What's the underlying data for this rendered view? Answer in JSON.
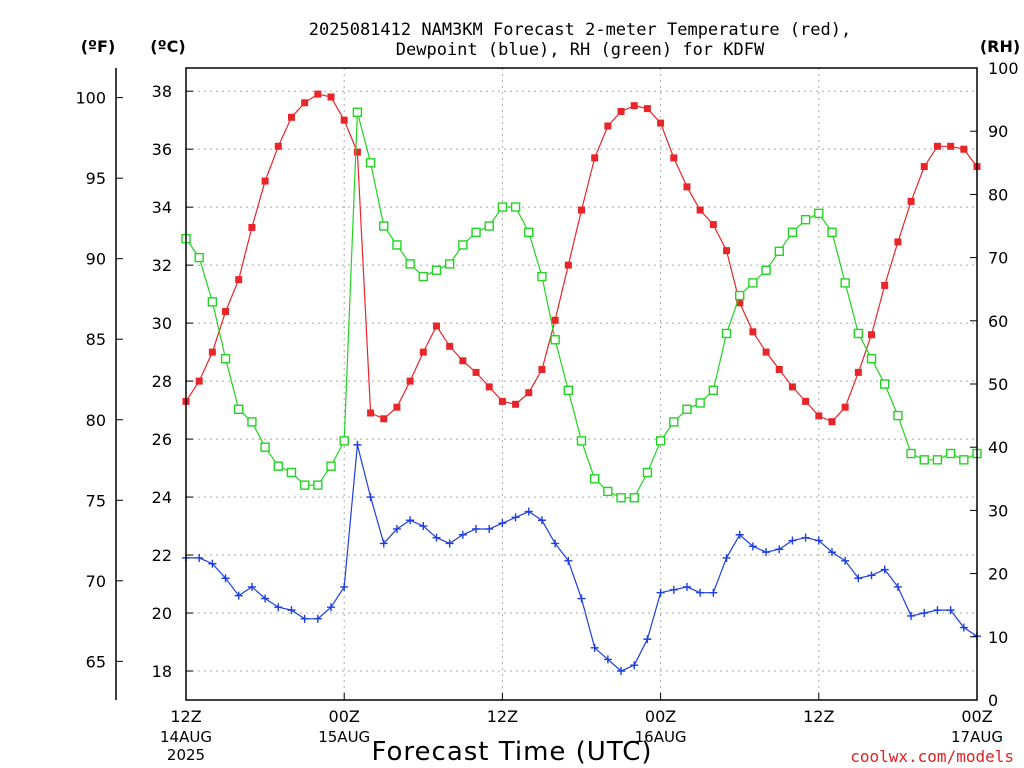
{
  "chart_data": {
    "type": "line",
    "title_line1": "2025081412 NAM3KM Forecast 2-meter Temperature (red),",
    "title_line2": "Dewpoint (blue), RH (green) for KDFW",
    "xlabel": "Forecast Time (UTC)",
    "credit": "coolwx.com/models",
    "left_outer_axis_label": "(ºF)",
    "left_inner_axis_label": "(ºC)",
    "right_axis_label": "(RH)",
    "celsius_ticks": [
      "18",
      "20",
      "22",
      "24",
      "26",
      "28",
      "30",
      "32",
      "34",
      "36",
      "38"
    ],
    "fahrenheit_ticks": [
      "65",
      "70",
      "75",
      "80",
      "85",
      "90",
      "95",
      "100"
    ],
    "rh_ticks": [
      "0",
      "10",
      "20",
      "30",
      "40",
      "50",
      "60",
      "70",
      "80",
      "90",
      "100"
    ],
    "ylim_celsius": [
      17,
      38.8
    ],
    "ylim_rh": [
      0,
      100
    ],
    "x_ticks": [
      {
        "hour": 0,
        "label": "12Z",
        "date": "14AUG",
        "year": "2025"
      },
      {
        "hour": 12,
        "label": "00Z",
        "date": "15AUG",
        "year": ""
      },
      {
        "hour": 24,
        "label": "12Z",
        "date": "",
        "year": ""
      },
      {
        "hour": 36,
        "label": "00Z",
        "date": "16AUG",
        "year": ""
      },
      {
        "hour": 48,
        "label": "12Z",
        "date": "",
        "year": ""
      },
      {
        "hour": 60,
        "label": "00Z",
        "date": "17AUG",
        "year": ""
      }
    ],
    "xlim_hours": [
      0,
      60
    ],
    "grid": true,
    "series": [
      {
        "name": "Temperature",
        "color": "#e8262a",
        "marker": "filled-square",
        "x": [
          0,
          1,
          2,
          3,
          4,
          5,
          6,
          7,
          8,
          9,
          10,
          11,
          12,
          13,
          14,
          15,
          16,
          17,
          18,
          19,
          20,
          21,
          22,
          23,
          24,
          25,
          26,
          27,
          28,
          29,
          30,
          31,
          32,
          33,
          34,
          35,
          36,
          37,
          38,
          39,
          40,
          41,
          42,
          43,
          44,
          45,
          46,
          47,
          48,
          49,
          50,
          51,
          52,
          53,
          54,
          55,
          56,
          57,
          58,
          59,
          60
        ],
        "values": [
          27.3,
          28.0,
          29.0,
          30.4,
          31.5,
          33.3,
          34.9,
          36.1,
          37.1,
          37.6,
          37.9,
          37.8,
          37.0,
          35.9,
          26.9,
          26.7,
          27.1,
          28.0,
          29.0,
          29.9,
          29.2,
          28.7,
          28.3,
          27.8,
          27.3,
          27.2,
          27.6,
          28.4,
          30.1,
          32.0,
          33.9,
          35.7,
          36.8,
          37.3,
          37.5,
          37.4,
          36.9,
          35.7,
          34.7,
          33.9,
          33.4,
          32.5,
          30.7,
          29.7,
          29.0,
          28.4,
          27.8,
          27.3,
          26.8,
          26.6,
          27.1,
          28.3,
          29.6,
          31.3,
          32.8,
          34.2,
          35.4,
          36.1,
          36.1,
          36.0,
          35.4
        ]
      },
      {
        "name": "Dewpoint",
        "color": "#1d3fe0",
        "marker": "plus",
        "x": [
          0,
          1,
          2,
          3,
          4,
          5,
          6,
          7,
          8,
          9,
          10,
          11,
          12,
          13,
          14,
          15,
          16,
          17,
          18,
          19,
          20,
          21,
          22,
          23,
          24,
          25,
          26,
          27,
          28,
          29,
          30,
          31,
          32,
          33,
          34,
          35,
          36,
          37,
          38,
          39,
          40,
          41,
          42,
          43,
          44,
          45,
          46,
          47,
          48,
          49,
          50,
          51,
          52,
          53,
          54,
          55,
          56,
          57,
          58,
          59,
          60
        ],
        "values": [
          21.9,
          21.9,
          21.7,
          21.2,
          20.6,
          20.9,
          20.5,
          20.2,
          20.1,
          19.8,
          19.8,
          20.2,
          20.9,
          25.8,
          24.0,
          22.4,
          22.9,
          23.2,
          23.0,
          22.6,
          22.4,
          22.7,
          22.9,
          22.9,
          23.1,
          23.3,
          23.5,
          23.2,
          22.4,
          21.8,
          20.5,
          18.8,
          18.4,
          18.0,
          18.2,
          19.1,
          20.7,
          20.8,
          20.9,
          20.7,
          20.7,
          21.9,
          22.7,
          22.3,
          22.1,
          22.2,
          22.5,
          22.6,
          22.5,
          22.1,
          21.8,
          21.2,
          21.3,
          21.5,
          20.9,
          19.9,
          20.0,
          20.1,
          20.1,
          19.5,
          19.2
        ]
      },
      {
        "name": "RH",
        "color": "#22d422",
        "marker": "open-square",
        "axis": "rh",
        "x": [
          0,
          1,
          2,
          3,
          4,
          5,
          6,
          7,
          8,
          9,
          10,
          11,
          12,
          13,
          14,
          15,
          16,
          17,
          18,
          19,
          20,
          21,
          22,
          23,
          24,
          25,
          26,
          27,
          28,
          29,
          30,
          31,
          32,
          33,
          34,
          35,
          36,
          37,
          38,
          39,
          40,
          41,
          42,
          43,
          44,
          45,
          46,
          47,
          48,
          49,
          50,
          51,
          52,
          53,
          54,
          55,
          56,
          57,
          58,
          59,
          60
        ],
        "values": [
          73,
          70,
          63,
          54,
          46,
          44,
          40,
          37,
          36,
          34,
          34,
          37,
          41,
          93,
          85,
          75,
          72,
          69,
          67,
          68,
          69,
          72,
          74,
          75,
          78,
          78,
          74,
          67,
          57,
          49,
          41,
          35,
          33,
          32,
          32,
          36,
          41,
          44,
          46,
          47,
          49,
          58,
          64,
          66,
          68,
          71,
          74,
          76,
          77,
          74,
          66,
          58,
          54,
          50,
          45,
          39,
          38,
          38,
          39,
          38,
          39
        ]
      }
    ]
  }
}
